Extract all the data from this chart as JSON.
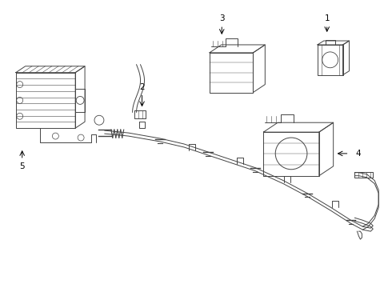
{
  "bg_color": "#ffffff",
  "line_color": "#444444",
  "text_color": "#000000",
  "fig_width": 4.9,
  "fig_height": 3.6,
  "dpi": 100
}
